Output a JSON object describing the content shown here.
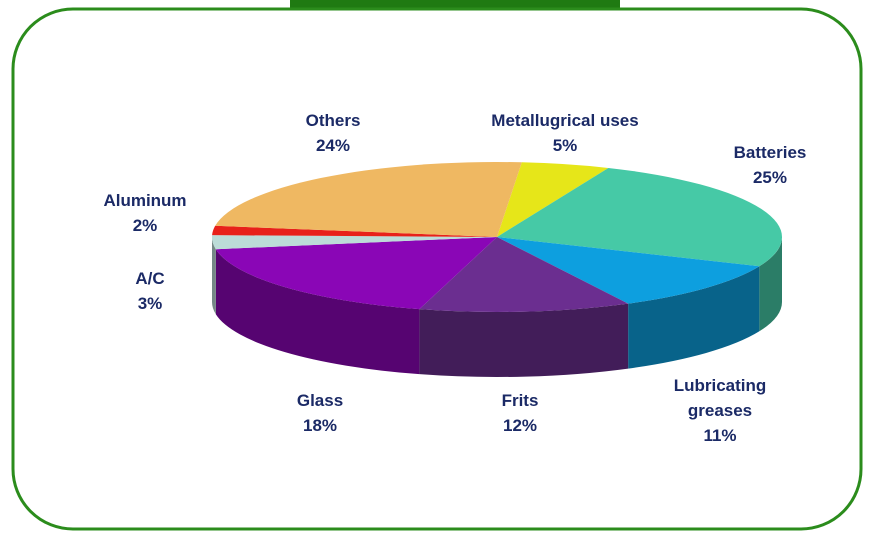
{
  "chart_data": {
    "type": "pie",
    "categories": [
      "Metallugrical uses",
      "Batteries",
      "Lubricating greases",
      "Frits",
      "Glass",
      "A/C",
      "Aluminum",
      "Others"
    ],
    "values": [
      5,
      25,
      11,
      12,
      18,
      3,
      2,
      24
    ],
    "value_labels": [
      "5%",
      "25%",
      "11%",
      "12%",
      "18%",
      "3%",
      "2%",
      "24%"
    ],
    "colors": [
      "#e6e619",
      "#46c9a6",
      "#0d9fdf",
      "#6b2e90",
      "#8a06b6",
      "#bcdcd8",
      "#e8211a",
      "#efb862"
    ]
  }
}
